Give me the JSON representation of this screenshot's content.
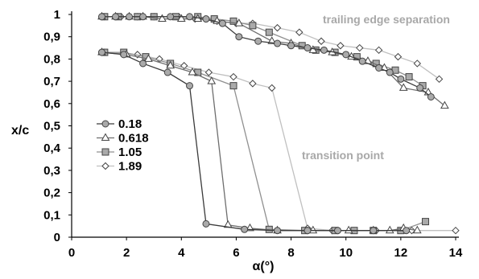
{
  "chart_data": {
    "type": "line",
    "xlabel": "α(°)",
    "ylabel": "x/c",
    "xlim": [
      0,
      14
    ],
    "ylim": [
      0,
      1
    ],
    "x_ticks": [
      0,
      2,
      4,
      6,
      8,
      10,
      12,
      14
    ],
    "x_tick_labels": [
      "0",
      "2",
      "4",
      "6",
      "8",
      "10",
      "12",
      "14"
    ],
    "y_ticks": [
      0,
      0.1,
      0.2,
      0.3,
      0.4,
      0.5,
      0.6,
      0.7,
      0.8,
      0.9,
      1
    ],
    "y_tick_labels": [
      "0",
      "0,1",
      "0,2",
      "0,3",
      "0,4",
      "0,5",
      "0,6",
      "0,7",
      "0,8",
      "0,9",
      "1"
    ],
    "grid": false,
    "legend_position": "middle-left",
    "annotations": [
      {
        "text": "trailing edge separation"
      },
      {
        "text": "transition point"
      }
    ],
    "series": [
      {
        "name": "0.18",
        "marker": "circle",
        "color": "#3a3a3a",
        "marker_fill": "#aaaaaa",
        "separation": [
          [
            1.1,
            0.99
          ],
          [
            1.6,
            0.99
          ],
          [
            2.1,
            0.99
          ],
          [
            2.6,
            0.99
          ],
          [
            3.6,
            0.99
          ],
          [
            4.3,
            0.99
          ],
          [
            4.9,
            0.98
          ],
          [
            5.5,
            0.96
          ],
          [
            6.1,
            0.9
          ],
          [
            6.8,
            0.88
          ],
          [
            7.5,
            0.87
          ],
          [
            8.0,
            0.86
          ],
          [
            8.6,
            0.85
          ],
          [
            9.2,
            0.84
          ],
          [
            10.0,
            0.82
          ],
          [
            10.6,
            0.79
          ],
          [
            11.2,
            0.76
          ],
          [
            11.6,
            0.74
          ],
          [
            12.0,
            0.71
          ],
          [
            12.7,
            0.67
          ],
          [
            13.1,
            0.63
          ]
        ],
        "transition": [
          [
            1.1,
            0.83
          ],
          [
            1.9,
            0.82
          ],
          [
            2.6,
            0.78
          ],
          [
            3.5,
            0.74
          ],
          [
            4.3,
            0.68
          ],
          [
            4.9,
            0.06
          ],
          [
            6.3,
            0.035
          ],
          [
            7.5,
            0.03
          ],
          [
            8.6,
            0.03
          ],
          [
            9.7,
            0.03
          ],
          [
            11.0,
            0.03
          ],
          [
            12.2,
            0.03
          ]
        ]
      },
      {
        "name": "0.618",
        "marker": "triangle",
        "color": "#6e6e6e",
        "marker_fill": "#ffffff",
        "separation": [
          [
            1.1,
            0.99
          ],
          [
            1.6,
            0.99
          ],
          [
            2.1,
            0.99
          ],
          [
            2.6,
            0.99
          ],
          [
            3.3,
            0.98
          ],
          [
            4.0,
            0.98
          ],
          [
            4.6,
            0.98
          ],
          [
            5.3,
            0.97
          ],
          [
            6.1,
            0.96
          ],
          [
            7.3,
            0.88
          ],
          [
            8.0,
            0.87
          ],
          [
            8.8,
            0.84
          ],
          [
            9.5,
            0.83
          ],
          [
            10.2,
            0.81
          ],
          [
            10.8,
            0.79
          ],
          [
            11.4,
            0.76
          ],
          [
            12.1,
            0.67
          ],
          [
            13.0,
            0.65
          ],
          [
            13.6,
            0.59
          ]
        ],
        "transition": [
          [
            1.1,
            0.83
          ],
          [
            2.0,
            0.82
          ],
          [
            2.8,
            0.8
          ],
          [
            3.6,
            0.77
          ],
          [
            4.4,
            0.74
          ],
          [
            5.1,
            0.7
          ],
          [
            5.7,
            0.055
          ],
          [
            6.5,
            0.04
          ],
          [
            7.5,
            0.03
          ],
          [
            8.8,
            0.03
          ],
          [
            10.1,
            0.03
          ],
          [
            11.0,
            0.03
          ],
          [
            11.6,
            0.03
          ],
          [
            12.1,
            0.04
          ],
          [
            12.6,
            0.03
          ]
        ]
      },
      {
        "name": "1.05",
        "marker": "square",
        "color": "#909090",
        "marker_fill": "#aaaaaa",
        "separation": [
          [
            1.2,
            0.99
          ],
          [
            1.7,
            0.99
          ],
          [
            2.4,
            0.99
          ],
          [
            3.0,
            0.99
          ],
          [
            3.8,
            0.99
          ],
          [
            4.6,
            0.99
          ],
          [
            5.2,
            0.98
          ],
          [
            5.9,
            0.97
          ],
          [
            6.6,
            0.95
          ],
          [
            7.2,
            0.92
          ],
          [
            8.4,
            0.86
          ],
          [
            8.9,
            0.84
          ],
          [
            9.6,
            0.83
          ],
          [
            10.4,
            0.81
          ],
          [
            11.1,
            0.78
          ],
          [
            11.8,
            0.75
          ],
          [
            12.3,
            0.72
          ],
          [
            12.8,
            0.68
          ]
        ],
        "transition": [
          [
            1.2,
            0.83
          ],
          [
            1.9,
            0.83
          ],
          [
            2.7,
            0.81
          ],
          [
            3.6,
            0.78
          ],
          [
            4.6,
            0.74
          ],
          [
            5.9,
            0.68
          ],
          [
            7.2,
            0.035
          ],
          [
            8.5,
            0.03
          ],
          [
            9.6,
            0.03
          ],
          [
            10.3,
            0.03
          ],
          [
            11.0,
            0.03
          ],
          [
            12.0,
            0.03
          ],
          [
            12.9,
            0.07
          ]
        ]
      },
      {
        "name": "1.89",
        "marker": "diamond",
        "color": "#c0c0c0",
        "marker_fill": "#ffffff",
        "separation": [
          [
            1.2,
            0.99
          ],
          [
            1.8,
            0.99
          ],
          [
            2.4,
            0.99
          ],
          [
            3.0,
            0.99
          ],
          [
            3.9,
            0.99
          ],
          [
            4.5,
            0.98
          ],
          [
            5.3,
            0.97
          ],
          [
            6.0,
            0.96
          ],
          [
            6.6,
            0.96
          ],
          [
            7.5,
            0.94
          ],
          [
            8.3,
            0.92
          ],
          [
            9.1,
            0.88
          ],
          [
            9.8,
            0.86
          ],
          [
            10.5,
            0.85
          ],
          [
            11.2,
            0.84
          ],
          [
            11.9,
            0.81
          ],
          [
            12.6,
            0.78
          ],
          [
            13.4,
            0.71
          ]
        ],
        "transition": [
          [
            1.2,
            0.83
          ],
          [
            2.4,
            0.82
          ],
          [
            3.2,
            0.8
          ],
          [
            4.1,
            0.77
          ],
          [
            5.0,
            0.74
          ],
          [
            5.9,
            0.72
          ],
          [
            6.6,
            0.69
          ],
          [
            7.3,
            0.67
          ],
          [
            8.6,
            0.04
          ],
          [
            9.5,
            0.03
          ],
          [
            11.1,
            0.03
          ],
          [
            12.4,
            0.03
          ],
          [
            14.0,
            0.03
          ]
        ]
      }
    ]
  }
}
